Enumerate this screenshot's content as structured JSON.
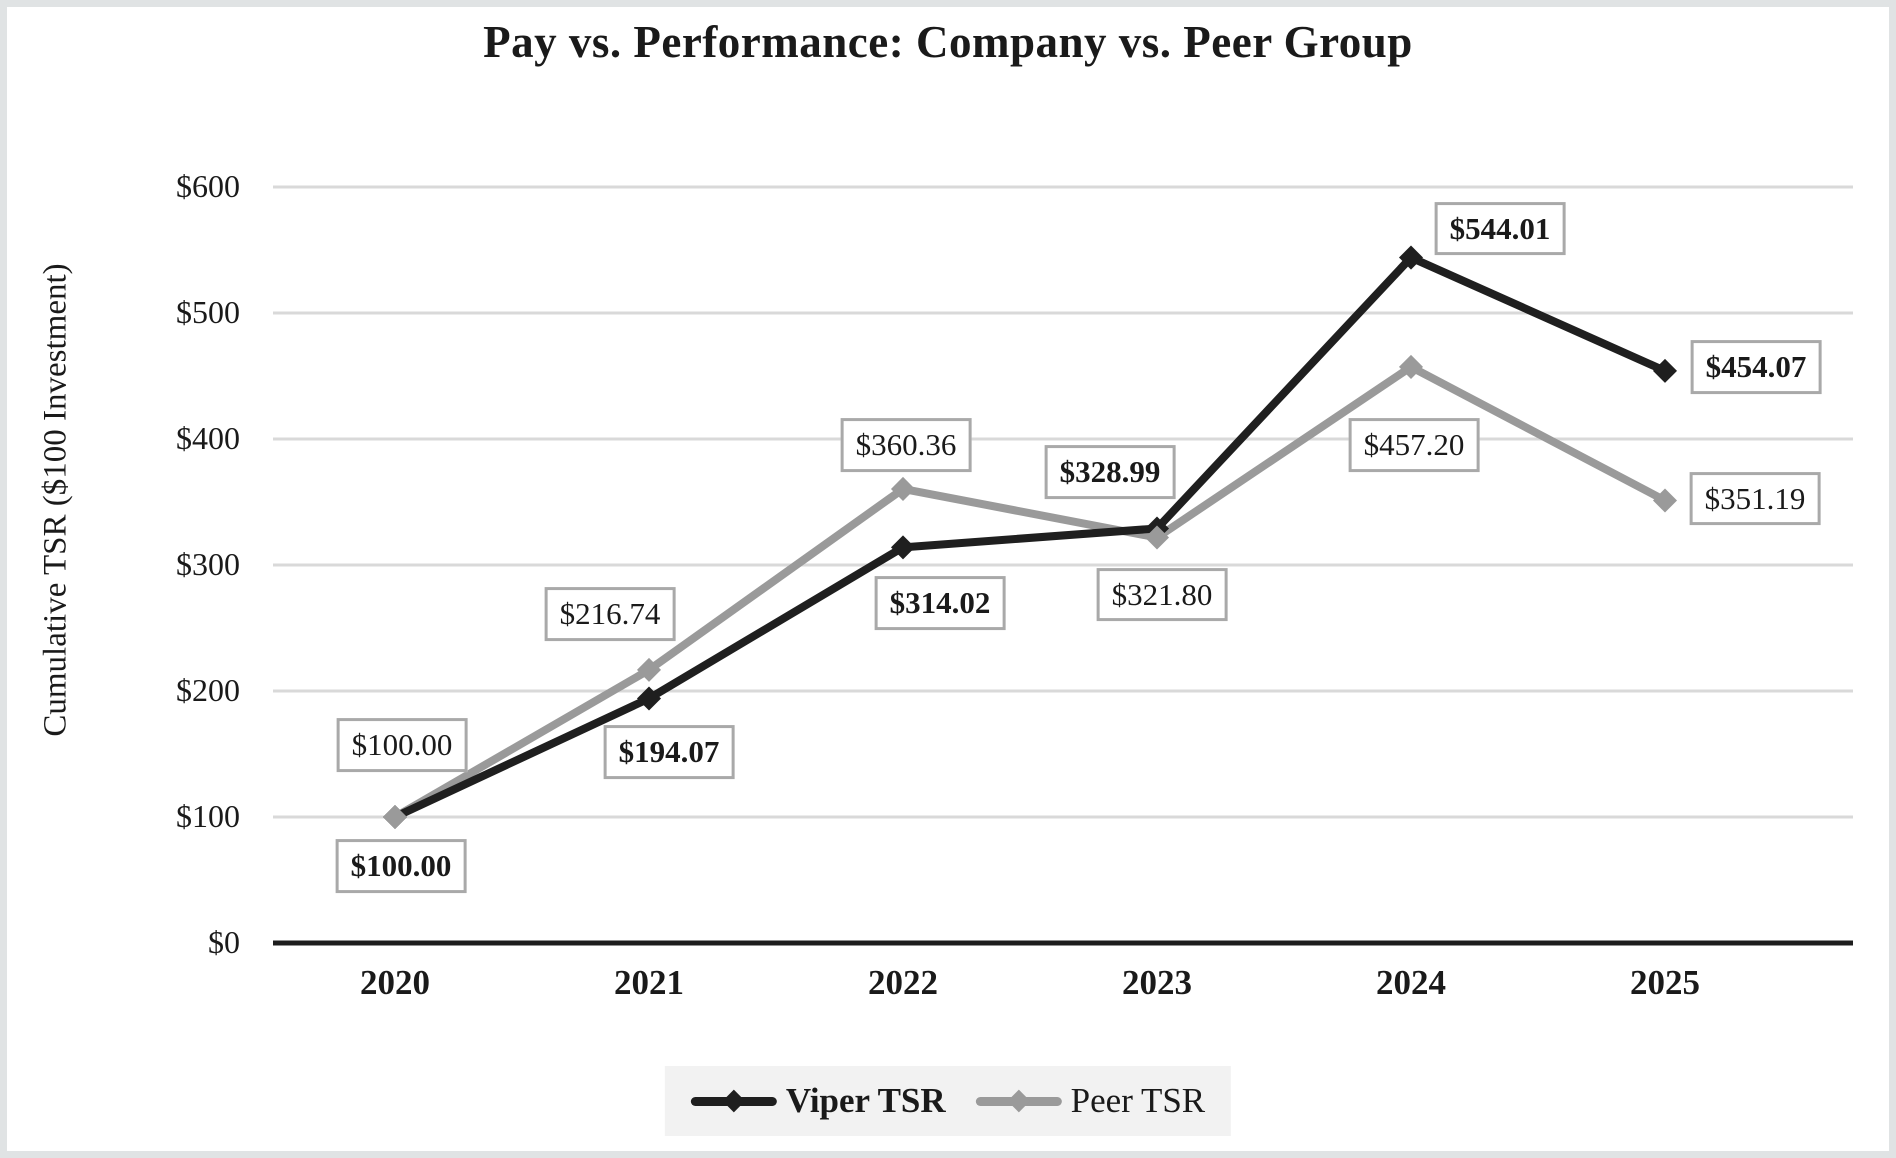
{
  "page": {
    "background": "#ffffff"
  },
  "colors": {
    "text": "#1a1a1a",
    "gridline": "#d9d9d9",
    "axis": "#1d1d1d",
    "label_box_border": "#a9a9a9",
    "label_box_fill": "#ffffff",
    "legend_bg": "#f2f2f2",
    "frame_border": "#e0e3e4"
  },
  "chart_data": {
    "type": "line",
    "title": "Pay vs. Performance: Company vs. Peer Group",
    "ylabel": "Cumulative TSR ($100 Investment)",
    "xlabel": "",
    "categories": [
      "2020",
      "2021",
      "2022",
      "2023",
      "2024",
      "2025"
    ],
    "series": [
      {
        "name": "Viper TSR",
        "color": "#1f1f1f",
        "bold": true,
        "values": [
          100.0,
          194.07,
          314.02,
          328.99,
          544.01,
          454.07
        ],
        "labels": [
          "$100.00",
          "$194.07",
          "$314.02",
          "$328.99",
          "$544.01",
          "$454.07"
        ]
      },
      {
        "name": "Peer TSR",
        "color": "#9a9a9a",
        "bold": false,
        "values": [
          100.0,
          216.74,
          360.36,
          321.8,
          457.2,
          351.19
        ],
        "labels": [
          "$100.00",
          "$216.74",
          "$360.36",
          "$321.80",
          "$457.20",
          "$351.19"
        ]
      }
    ],
    "yticks": {
      "labels": [
        "$0",
        "$100",
        "$200",
        "$300",
        "$400",
        "$500",
        "$600"
      ],
      "values": [
        0,
        100,
        200,
        300,
        400,
        500,
        600
      ]
    },
    "ylim": [
      0,
      600
    ],
    "grid": true,
    "legend_position": "bottom",
    "marker": "diamond",
    "layout_hints": {
      "label_offsets": [
        [
          [
            6,
            49
          ],
          [
            20,
            54
          ],
          [
            37,
            56
          ],
          [
            -47,
            -56
          ],
          [
            89,
            -29
          ],
          [
            91,
            -4
          ]
        ],
        [
          [
            7,
            -72
          ],
          [
            -39,
            -56
          ],
          [
            3,
            -44
          ],
          [
            5,
            57
          ],
          [
            3,
            78
          ],
          [
            90,
            -2
          ]
        ]
      ]
    }
  }
}
